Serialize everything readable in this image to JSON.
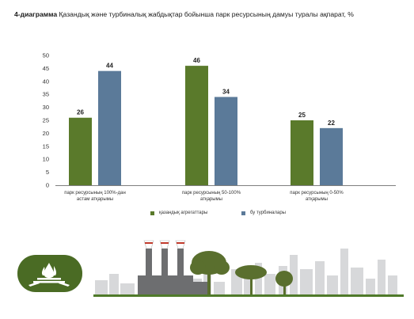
{
  "title": {
    "prefix": "4-диаграмма",
    "text": "Қазандық және турбиналық жабдықтар бойынша парк ресурсының дамуы туралы ақпарат, %"
  },
  "chart_data": {
    "type": "bar",
    "categories": [
      [
        "парк ресурсының 100%-дан",
        "астам атқарымы"
      ],
      [
        "парк ресурсының 50-100%",
        "атқарымы"
      ],
      [
        "парк ресурсының 0-50%",
        "атқарымы"
      ]
    ],
    "series": [
      {
        "name": "қазандық агрегаттары",
        "values": [
          26,
          46,
          25
        ],
        "color": "#5a7a2b"
      },
      {
        "name": "бу турбиналары",
        "values": [
          44,
          34,
          22
        ],
        "color": "#5b7a99"
      }
    ],
    "ylim": [
      0,
      50
    ],
    "yticks": [
      0,
      5,
      10,
      15,
      20,
      25,
      30,
      35,
      40,
      45,
      50
    ],
    "legend": "bottom",
    "grid": false
  },
  "colors": {
    "badge": "#4a6b24",
    "factory": "#6d6e70",
    "skyline": "#d7d8da",
    "trees": "#5a6f2e",
    "ground": "#4f7a2a",
    "smoke_stripe": "#c0392b"
  },
  "icons": [
    "fire-badge-icon",
    "factory-icon",
    "tree-icon",
    "city-skyline-icon"
  ]
}
